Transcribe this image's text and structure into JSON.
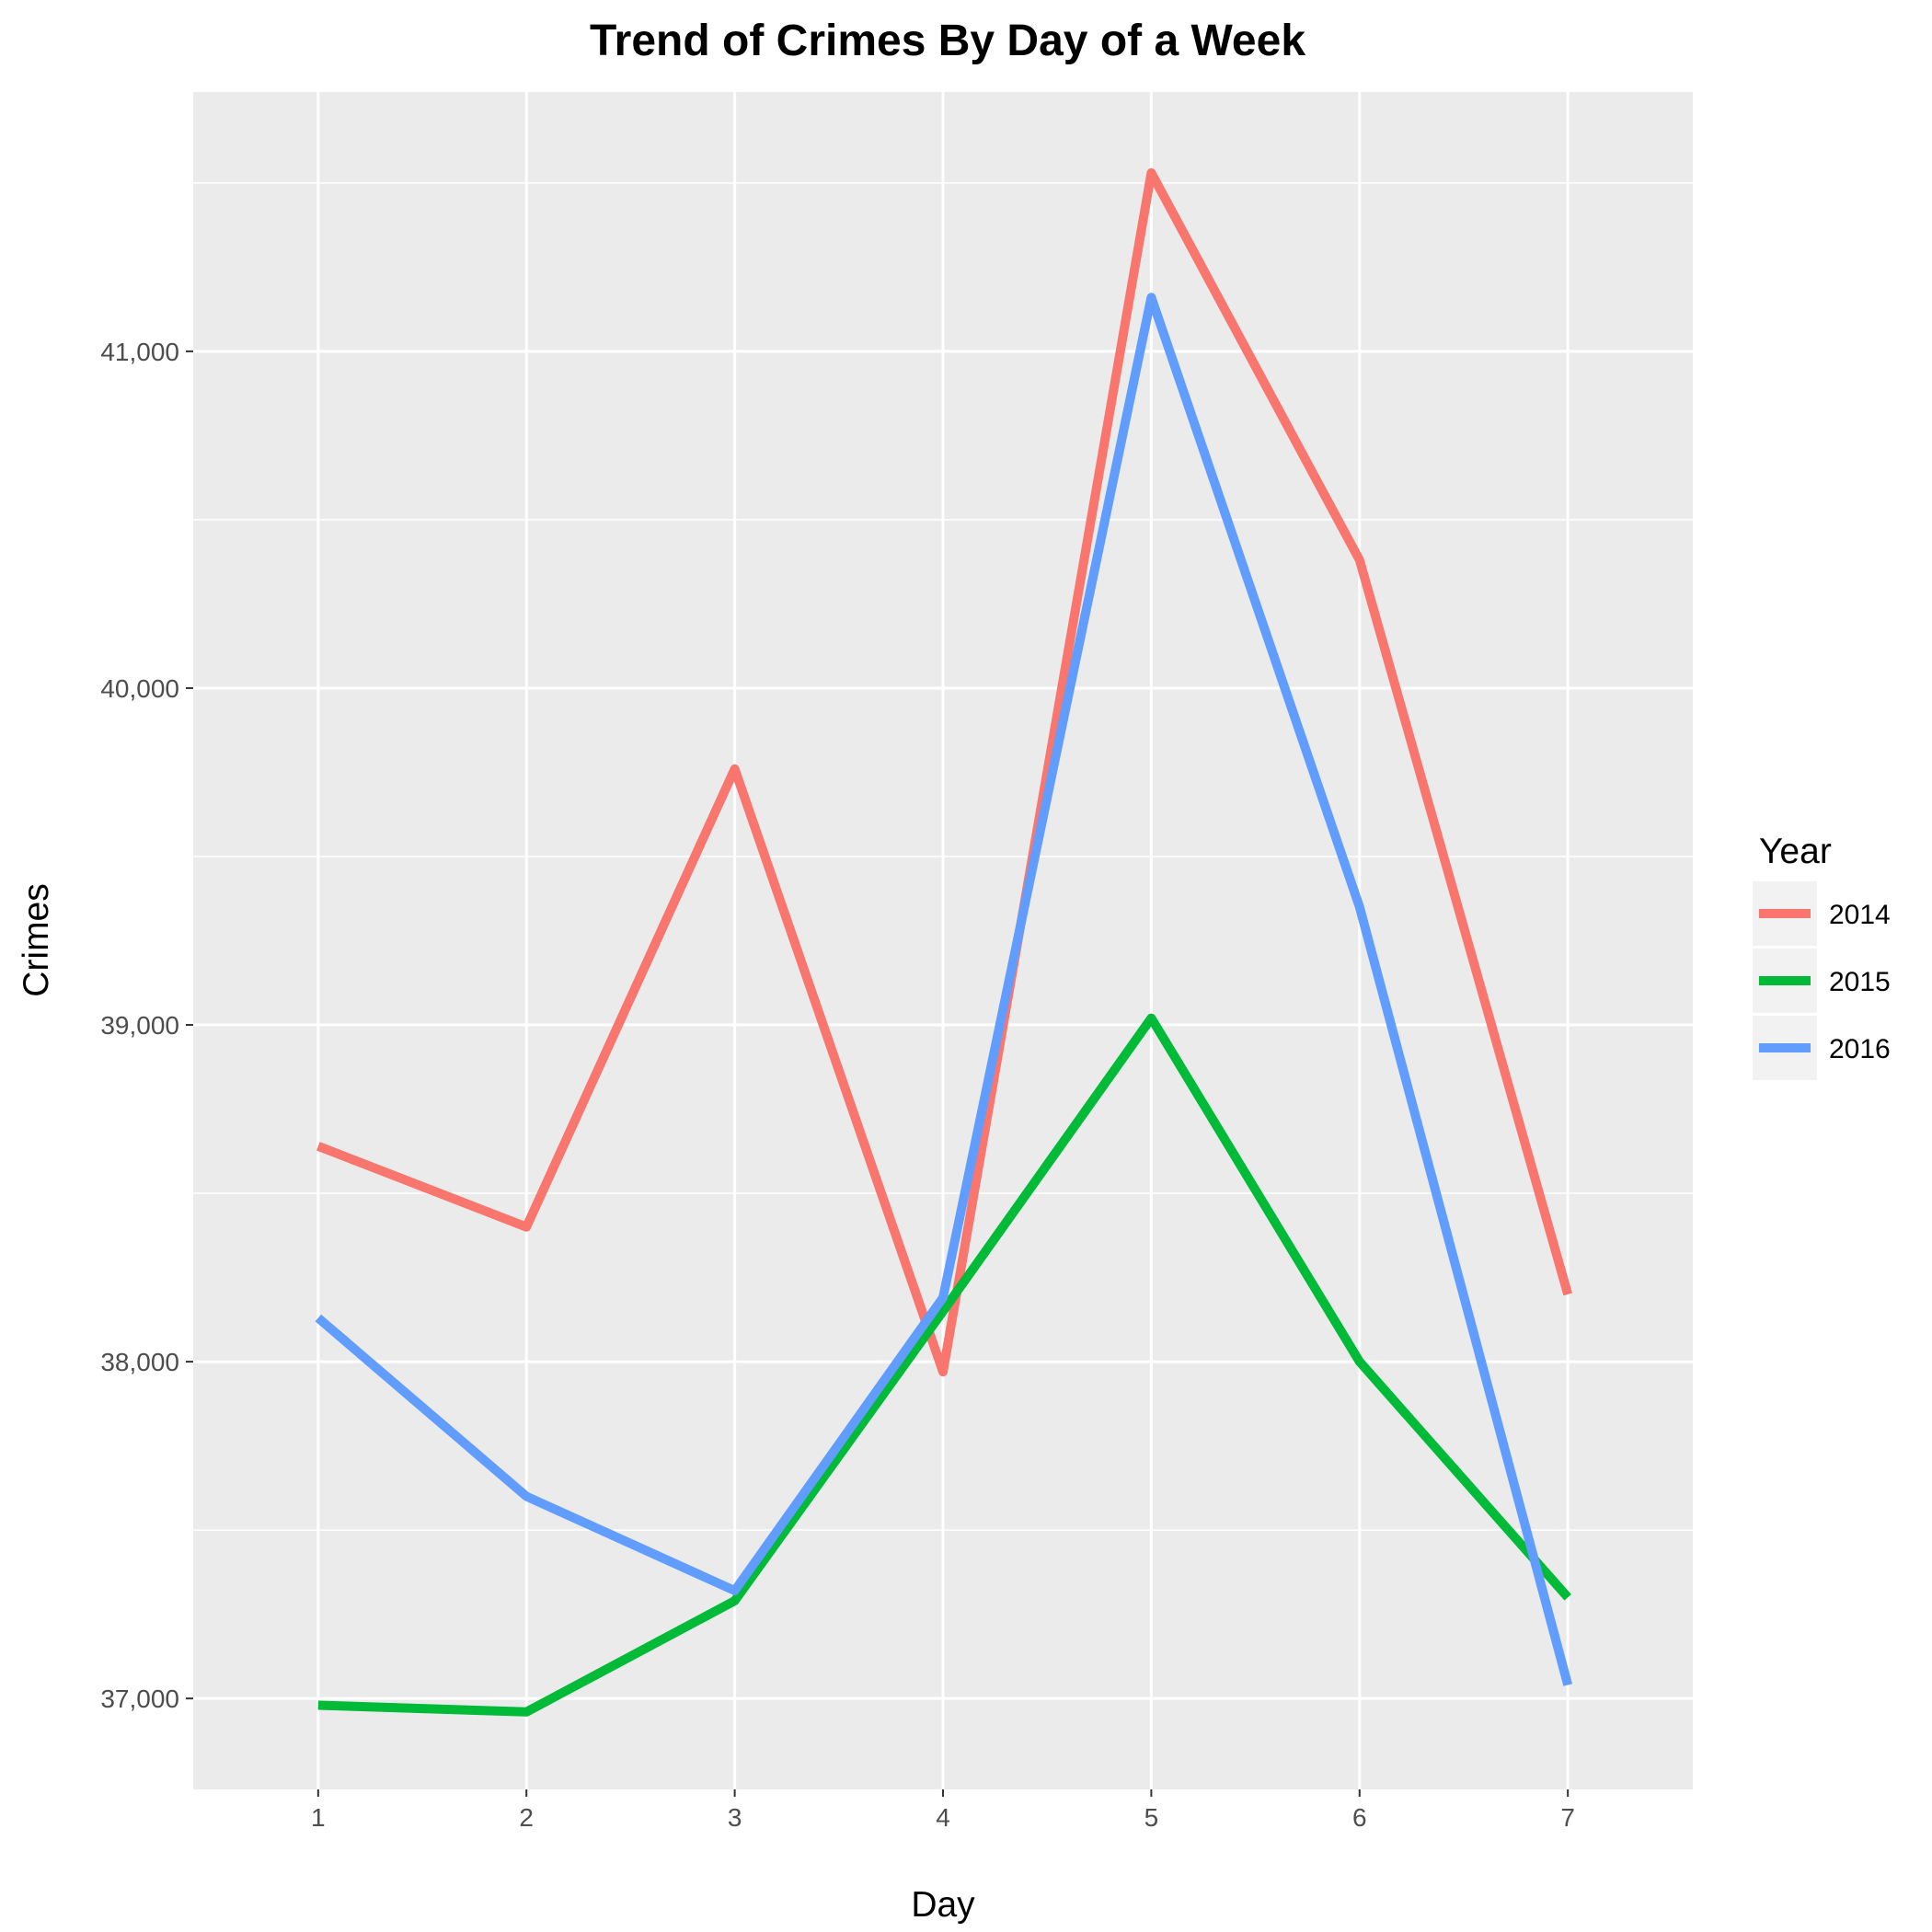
{
  "chart_data": {
    "type": "line",
    "title": "Trend of Crimes By Day of a Week",
    "xlabel": "Day",
    "ylabel": "Crimes",
    "x": [
      1,
      2,
      3,
      4,
      5,
      6,
      7
    ],
    "x_ticks": [
      "1",
      "2",
      "3",
      "4",
      "5",
      "6",
      "7"
    ],
    "xlim": [
      0.4,
      7.6
    ],
    "ylim": [
      36730,
      41770
    ],
    "y_ticks": [
      37000,
      38000,
      39000,
      40000,
      41000
    ],
    "y_tick_labels": [
      "37,000",
      "38,000",
      "39,000",
      "40,000",
      "41,000"
    ],
    "grid": true,
    "legend": {
      "title": "Year",
      "position": "right"
    },
    "series": [
      {
        "name": "2014",
        "color": "#F8766D",
        "values": [
          38640,
          38400,
          39760,
          37970,
          41530,
          40380,
          38200
        ]
      },
      {
        "name": "2015",
        "color": "#00BA38",
        "values": [
          36980,
          36960,
          37290,
          38150,
          39020,
          38000,
          37300
        ]
      },
      {
        "name": "2016",
        "color": "#619CFF",
        "values": [
          38130,
          37600,
          37320,
          38190,
          41160,
          39350,
          37040
        ]
      }
    ]
  }
}
